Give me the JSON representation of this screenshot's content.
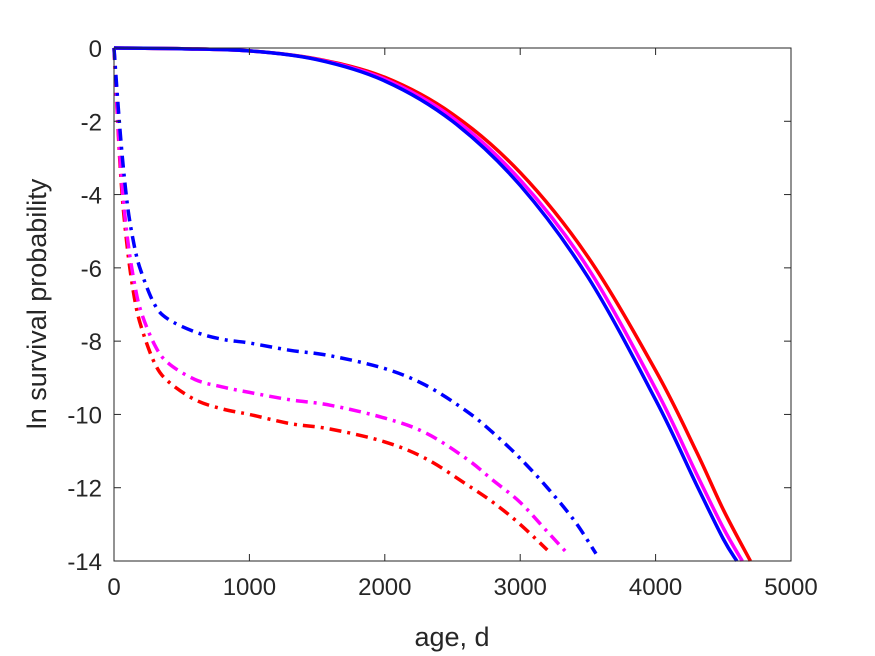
{
  "chart_data": {
    "type": "line",
    "title": "",
    "xlabel": "age, d",
    "ylabel": "ln survival probability",
    "xlim": [
      0,
      5000
    ],
    "ylim": [
      -14,
      0
    ],
    "xticks": [
      0,
      1000,
      2000,
      3000,
      4000,
      5000
    ],
    "yticks": [
      0,
      -2,
      -4,
      -6,
      -8,
      -10,
      -12,
      -14
    ],
    "xtick_labels": [
      "0",
      "1000",
      "2000",
      "3000",
      "4000",
      "5000"
    ],
    "ytick_labels": [
      "0",
      "-2",
      "-4",
      "-6",
      "-8",
      "-10",
      "-12",
      "-14"
    ],
    "grid": false,
    "legend": "none",
    "series": [
      {
        "color": "#ff0000",
        "style": "solid",
        "x": [
          0,
          500,
          1000,
          1500,
          2000,
          2500,
          3000,
          3500,
          4000,
          4300,
          4500,
          4700
        ],
        "y": [
          0,
          -0.02,
          -0.08,
          -0.3,
          -0.8,
          -1.8,
          -3.4,
          -5.7,
          -8.8,
          -11.0,
          -12.6,
          -14.0
        ]
      },
      {
        "color": "#ff00ff",
        "style": "solid",
        "x": [
          0,
          500,
          1000,
          1500,
          2000,
          2500,
          3000,
          3500,
          4000,
          4300,
          4500,
          4640
        ],
        "y": [
          0,
          -0.02,
          -0.08,
          -0.31,
          -0.85,
          -1.9,
          -3.6,
          -6.0,
          -9.3,
          -11.6,
          -13.1,
          -14.0
        ]
      },
      {
        "color": "#0000ff",
        "style": "solid",
        "x": [
          0,
          500,
          1000,
          1500,
          2000,
          2500,
          3000,
          3500,
          4000,
          4300,
          4500,
          4600
        ],
        "y": [
          0,
          -0.02,
          -0.08,
          -0.32,
          -0.9,
          -2.0,
          -3.75,
          -6.25,
          -9.6,
          -11.9,
          -13.4,
          -14.0
        ]
      },
      {
        "color": "#ff0000",
        "style": "dashdot",
        "x": [
          0,
          50,
          100,
          150,
          200,
          300,
          400,
          600,
          800,
          1000,
          1300,
          1600,
          2000,
          2300,
          2600,
          2800,
          3000,
          3200
        ],
        "y": [
          0,
          -3.5,
          -5.5,
          -6.8,
          -7.6,
          -8.6,
          -9.1,
          -9.6,
          -9.85,
          -10.0,
          -10.25,
          -10.4,
          -10.75,
          -11.2,
          -11.9,
          -12.4,
          -13.0,
          -13.7
        ]
      },
      {
        "color": "#ff00ff",
        "style": "dashdot",
        "x": [
          0,
          50,
          100,
          150,
          200,
          300,
          400,
          600,
          800,
          1000,
          1300,
          1600,
          2000,
          2300,
          2600,
          2800,
          3000,
          3200,
          3350
        ],
        "y": [
          0,
          -3.3,
          -5.2,
          -6.4,
          -7.2,
          -8.1,
          -8.6,
          -9.05,
          -9.25,
          -9.4,
          -9.6,
          -9.75,
          -10.1,
          -10.5,
          -11.2,
          -11.8,
          -12.4,
          -13.2,
          -13.8
        ]
      },
      {
        "color": "#0000ff",
        "style": "dashdot",
        "x": [
          0,
          50,
          100,
          150,
          200,
          300,
          400,
          600,
          800,
          1000,
          1300,
          1600,
          2000,
          2300,
          2600,
          2800,
          3000,
          3200,
          3400,
          3560
        ],
        "y": [
          0,
          -2.5,
          -4.3,
          -5.4,
          -6.1,
          -7.0,
          -7.4,
          -7.75,
          -7.95,
          -8.05,
          -8.25,
          -8.4,
          -8.75,
          -9.2,
          -9.9,
          -10.5,
          -11.2,
          -12.0,
          -12.9,
          -13.8
        ]
      }
    ]
  }
}
